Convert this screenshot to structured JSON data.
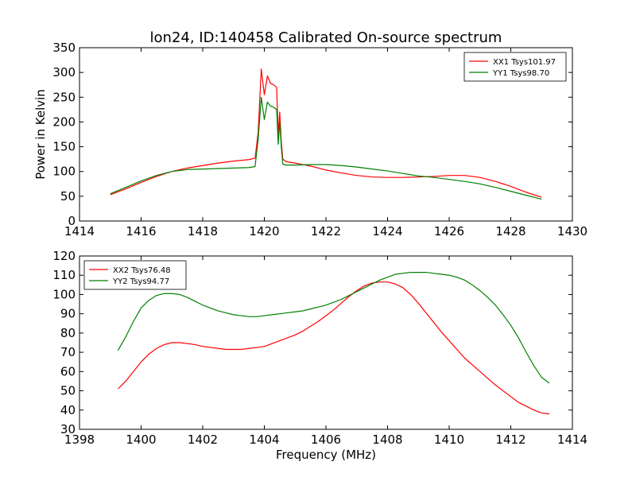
{
  "title": "lon24, ID:140458 Calibrated On-source spectrum",
  "chart_data": [
    {
      "type": "line",
      "title": "lon24, ID:140458 Calibrated On-source spectrum",
      "xlabel": "",
      "ylabel": "Power in Kelvin",
      "xlim": [
        1414,
        1430
      ],
      "ylim": [
        0,
        350
      ],
      "xticks": [
        1414,
        1416,
        1418,
        1420,
        1422,
        1424,
        1426,
        1428,
        1430
      ],
      "yticks": [
        0,
        50,
        100,
        150,
        200,
        250,
        300,
        350
      ],
      "legend_position": "top-right",
      "series": [
        {
          "name": "XX1 Tsys101.97",
          "color": "#ff0000",
          "x": [
            1415.0,
            1415.5,
            1416.0,
            1416.5,
            1417.0,
            1417.5,
            1418.0,
            1418.5,
            1419.0,
            1419.5,
            1419.7,
            1419.8,
            1419.9,
            1420.0,
            1420.1,
            1420.2,
            1420.3,
            1420.4,
            1420.45,
            1420.5,
            1420.55,
            1420.6,
            1420.7,
            1421.0,
            1421.5,
            1422.0,
            1422.5,
            1423.0,
            1423.5,
            1424.0,
            1424.5,
            1425.0,
            1425.5,
            1426.0,
            1426.5,
            1427.0,
            1427.5,
            1428.0,
            1428.5,
            1429.0
          ],
          "y": [
            53,
            65,
            78,
            90,
            100,
            107,
            112,
            117,
            121,
            124,
            127,
            180,
            307,
            255,
            293,
            278,
            275,
            270,
            175,
            220,
            160,
            125,
            120,
            117,
            111,
            103,
            97,
            92,
            89,
            88,
            88,
            89,
            90,
            92,
            92,
            88,
            80,
            70,
            58,
            48
          ]
        },
        {
          "name": "YY1 Tsys98.70",
          "color": "#008000",
          "x": [
            1415.0,
            1415.5,
            1416.0,
            1416.5,
            1417.0,
            1417.5,
            1418.0,
            1418.5,
            1419.0,
            1419.5,
            1419.7,
            1419.8,
            1419.9,
            1420.0,
            1420.1,
            1420.2,
            1420.3,
            1420.4,
            1420.45,
            1420.5,
            1420.55,
            1420.6,
            1420.7,
            1421.0,
            1421.5,
            1422.0,
            1422.5,
            1423.0,
            1423.5,
            1424.0,
            1424.5,
            1425.0,
            1425.5,
            1426.0,
            1426.5,
            1427.0,
            1427.5,
            1428.0,
            1428.5,
            1429.0
          ],
          "y": [
            55,
            68,
            81,
            92,
            100,
            104,
            105,
            106,
            107,
            108,
            110,
            165,
            250,
            205,
            240,
            232,
            230,
            225,
            155,
            200,
            150,
            115,
            113,
            113,
            114,
            114,
            112,
            109,
            105,
            101,
            96,
            91,
            88,
            84,
            80,
            75,
            68,
            60,
            52,
            44
          ]
        }
      ]
    },
    {
      "type": "line",
      "title": "",
      "xlabel": "Frequency (MHz)",
      "ylabel": "",
      "xlim": [
        1398,
        1414
      ],
      "ylim": [
        30,
        120
      ],
      "xticks": [
        1398,
        1400,
        1402,
        1404,
        1406,
        1408,
        1410,
        1412,
        1414
      ],
      "yticks": [
        30,
        40,
        50,
        60,
        70,
        80,
        90,
        100,
        110,
        120
      ],
      "legend_position": "top-left",
      "series": [
        {
          "name": "XX2 Tsys76.48",
          "color": "#ff0000",
          "x": [
            1399.25,
            1399.5,
            1399.75,
            1400.0,
            1400.25,
            1400.5,
            1400.75,
            1401.0,
            1401.25,
            1401.5,
            1401.75,
            1402.0,
            1402.25,
            1402.5,
            1402.75,
            1403.0,
            1403.25,
            1403.5,
            1403.75,
            1404.0,
            1404.25,
            1404.5,
            1404.75,
            1405.0,
            1405.25,
            1405.5,
            1405.75,
            1406.0,
            1406.25,
            1406.5,
            1406.75,
            1407.0,
            1407.25,
            1407.5,
            1407.75,
            1408.0,
            1408.25,
            1408.5,
            1408.75,
            1409.0,
            1409.25,
            1409.5,
            1409.75,
            1410.0,
            1410.25,
            1410.5,
            1410.75,
            1411.0,
            1411.25,
            1411.5,
            1411.75,
            1412.0,
            1412.25,
            1412.5,
            1412.75,
            1413.0,
            1413.25
          ],
          "y": [
            51,
            55,
            60,
            65,
            69,
            72,
            74,
            75,
            75,
            74.5,
            74,
            73,
            72.5,
            72,
            71.5,
            71.5,
            71.5,
            72,
            72.5,
            73,
            74.5,
            76,
            77.5,
            79,
            81,
            83.5,
            86,
            89,
            92,
            95.5,
            99,
            102,
            104.5,
            106,
            106.5,
            106.5,
            105.5,
            103.5,
            100,
            95.5,
            90.5,
            85.5,
            80.5,
            76,
            71.5,
            67,
            63.5,
            60,
            56.5,
            53,
            50,
            47,
            44,
            42,
            40,
            38.5,
            38
          ]
        },
        {
          "name": "YY2 Tsys94.77",
          "color": "#008000",
          "x": [
            1399.25,
            1399.5,
            1399.75,
            1400.0,
            1400.25,
            1400.5,
            1400.75,
            1401.0,
            1401.25,
            1401.5,
            1401.75,
            1402.0,
            1402.25,
            1402.5,
            1402.75,
            1403.0,
            1403.25,
            1403.5,
            1403.75,
            1404.0,
            1404.25,
            1404.5,
            1404.75,
            1405.0,
            1405.25,
            1405.5,
            1405.75,
            1406.0,
            1406.25,
            1406.5,
            1406.75,
            1407.0,
            1407.25,
            1407.5,
            1407.75,
            1408.0,
            1408.25,
            1408.5,
            1408.75,
            1409.0,
            1409.25,
            1409.5,
            1409.75,
            1410.0,
            1410.25,
            1410.5,
            1410.75,
            1411.0,
            1411.25,
            1411.5,
            1411.75,
            1412.0,
            1412.25,
            1412.5,
            1412.75,
            1413.0,
            1413.25
          ],
          "y": [
            71,
            78,
            86,
            93,
            97,
            99.5,
            100.5,
            100.5,
            100,
            98.5,
            96.5,
            94.5,
            93,
            91.5,
            90.5,
            89.5,
            89,
            88.5,
            88.5,
            89,
            89.5,
            90,
            90.5,
            91,
            91.5,
            92.5,
            93.5,
            94.5,
            96,
            97.5,
            99.5,
            101.5,
            103.5,
            105.5,
            107.5,
            109,
            110.5,
            111,
            111.5,
            111.5,
            111.5,
            111,
            110.5,
            110,
            109,
            107.5,
            105,
            102,
            98.5,
            94.5,
            89.5,
            84,
            77.5,
            70,
            63,
            57,
            54
          ]
        }
      ]
    }
  ]
}
